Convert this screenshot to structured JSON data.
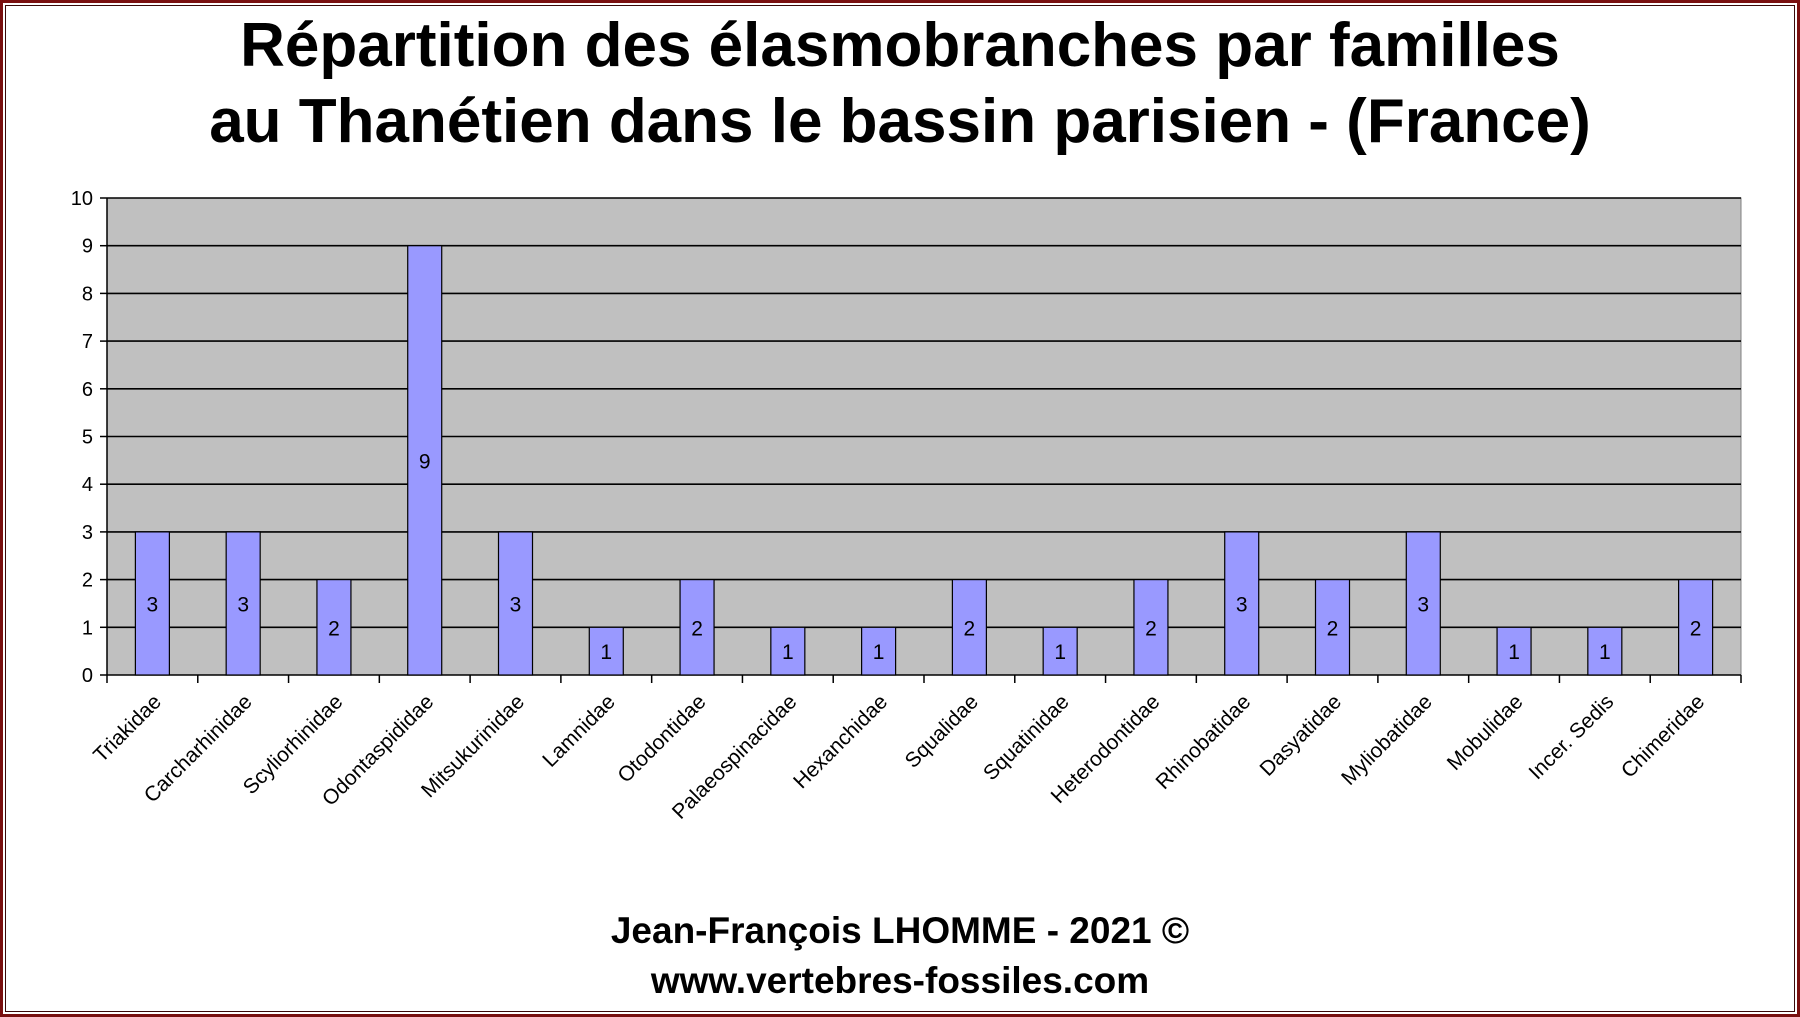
{
  "title_lines": [
    "Répartition des élasmobranches par familles",
    "au Thanétien dans le bassin parisien - (France)"
  ],
  "footer": {
    "author": "Jean-François LHOMME - 2021 ©",
    "website": "www.vertebres-fossiles.com"
  },
  "colors": {
    "bar_fill": "#9999ff",
    "plot_background": "#c0c0c0",
    "frame_border": "#7a1010"
  },
  "chart_data": {
    "type": "bar",
    "title": "Répartition des élasmobranches par familles au Thanétien dans le bassin parisien - (France)",
    "categories": [
      "Triakidae",
      "Carcharhinidae",
      "Scyliorhinidae",
      "Odontaspididae",
      "Mitsukurinidae",
      "Lamnidae",
      "Otodontidae",
      "Palaeospinacidae",
      "Hexanchidae",
      "Squalidae",
      "Squatinidae",
      "Heterodontidae",
      "Rhinobatidae",
      "Dasyatidae",
      "Myliobatidae",
      "Mobulidae",
      "Incer. Sedis",
      "Chimeridae"
    ],
    "values": [
      3,
      3,
      2,
      9,
      3,
      1,
      2,
      1,
      1,
      2,
      1,
      2,
      3,
      2,
      3,
      1,
      1,
      2
    ],
    "xlabel": "",
    "ylabel": "",
    "ylim": [
      0,
      10
    ],
    "yticks": [
      0,
      1,
      2,
      3,
      4,
      5,
      6,
      7,
      8,
      9,
      10
    ],
    "grid": true,
    "data_labels": true,
    "legend": "none"
  }
}
